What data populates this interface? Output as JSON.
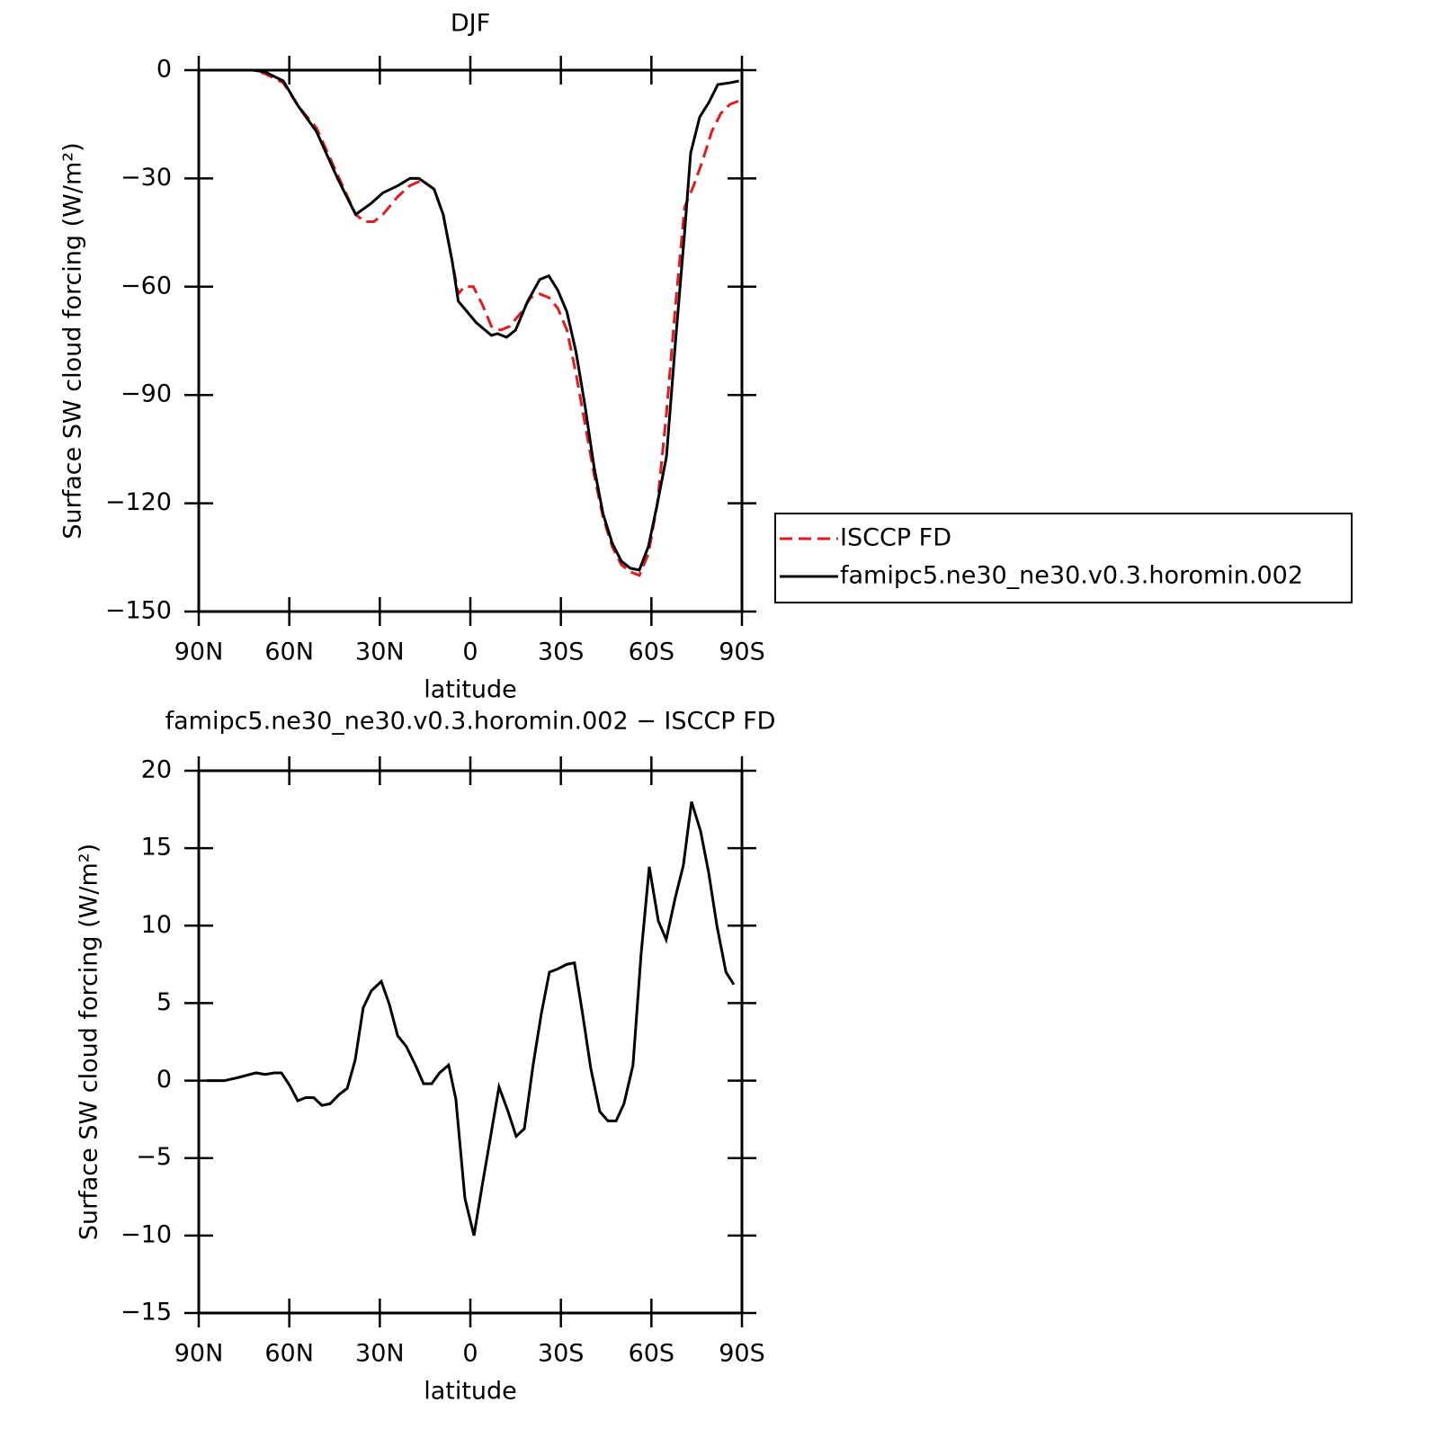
{
  "chart_data": [
    {
      "type": "line",
      "title": "DJF",
      "xlabel": "latitude",
      "ylabel": "Surface SW cloud forcing (W/m²)",
      "xlim": [
        90,
        -90
      ],
      "xticks": [
        {
          "value": 90,
          "label": "90N"
        },
        {
          "value": 60,
          "label": "60N"
        },
        {
          "value": 30,
          "label": "30N"
        },
        0,
        {
          "value": -30,
          "label": "30S"
        },
        {
          "value": -60,
          "label": "60S"
        },
        {
          "value": -90,
          "label": "90S"
        }
      ],
      "ylim": [
        -150,
        0
      ],
      "yticks": [
        0,
        {
          "value": -30,
          "label": "−30"
        },
        {
          "value": -60,
          "label": "−60"
        },
        {
          "value": -90,
          "label": "−90"
        },
        {
          "value": -120,
          "label": "−120"
        },
        {
          "value": -150,
          "label": "−150"
        }
      ],
      "legend": "right",
      "series": [
        {
          "name": "ISCCP FD",
          "color": "#e41a1c",
          "line_style": "dashed",
          "x": [
            88,
            72,
            68,
            62,
            57,
            51,
            44,
            38,
            35,
            32,
            29,
            24,
            20,
            16,
            12,
            9,
            6,
            4,
            2,
            -1,
            -4,
            -7,
            -10,
            -13,
            -17,
            -20,
            -23,
            -26,
            -29,
            -32,
            -35,
            -38,
            -41,
            -44,
            -47,
            -50,
            -53,
            -56,
            -59,
            -62,
            -65,
            -68,
            -71,
            -74,
            -77,
            -80,
            -83,
            -86,
            -89
          ],
          "values": [
            0,
            0,
            -1,
            -3.5,
            -10,
            -16,
            -29,
            -40,
            -42,
            -42,
            -40,
            -35,
            -32,
            -30.5,
            -33,
            -40,
            -53,
            -62,
            -60,
            -60,
            -65,
            -71,
            -72,
            -71,
            -67,
            -63,
            -62,
            -63,
            -66,
            -72,
            -84,
            -98,
            -112,
            -124,
            -132,
            -137,
            -139,
            -140,
            -134,
            -120,
            -95,
            -65,
            -38,
            -32,
            -25,
            -17,
            -12,
            -9.5,
            -8.5
          ]
        },
        {
          "name": "famipc5.ne30_ne30.v0.3.horomin.002",
          "color": "#000000",
          "line_style": "solid",
          "x": [
            88,
            72,
            68,
            62,
            57,
            51,
            44,
            38,
            33,
            29,
            24,
            20,
            17,
            12,
            9,
            6,
            4,
            -2,
            -7,
            -9,
            -12,
            -15,
            -19,
            -23,
            -26,
            -29,
            -32,
            -35,
            -38,
            -41,
            -44,
            -47,
            -50,
            -53,
            -56,
            -59,
            -62,
            -65,
            -68,
            -71,
            -73,
            -76,
            -79,
            -82,
            -86,
            -89
          ],
          "values": [
            0,
            0,
            -0.5,
            -3,
            -10,
            -17,
            -30,
            -40,
            -37,
            -34,
            -32,
            -30,
            -30,
            -33,
            -40,
            -53,
            -64,
            -70,
            -73.5,
            -73,
            -74,
            -72,
            -64,
            -58,
            -57,
            -61,
            -67,
            -78,
            -93,
            -110,
            -123,
            -131,
            -136,
            -138,
            -138.5,
            -132,
            -120,
            -107,
            -75,
            -45,
            -23,
            -13,
            -9,
            -4,
            -3.5,
            -3
          ]
        }
      ]
    },
    {
      "type": "line",
      "title": "famipc5.ne30_ne30.v0.3.horomin.002 − ISCCP FD",
      "xlabel": "latitude",
      "ylabel": "Surface SW cloud forcing (W/m²)",
      "xlim": [
        90,
        -90
      ],
      "xticks": [
        {
          "value": 90,
          "label": "90N"
        },
        {
          "value": 60,
          "label": "60N"
        },
        {
          "value": 30,
          "label": "30N"
        },
        0,
        {
          "value": -30,
          "label": "30S"
        },
        {
          "value": -60,
          "label": "60S"
        },
        {
          "value": -90,
          "label": "90S"
        }
      ],
      "ylim": [
        -15,
        20
      ],
      "yticks": [
        20,
        15,
        10,
        5,
        0,
        {
          "value": -5,
          "label": "−5"
        },
        {
          "value": -10,
          "label": "−10"
        },
        {
          "value": -15,
          "label": "−15"
        }
      ],
      "series": [
        {
          "color": "#000000",
          "line_style": "solid",
          "x": [
            87.3,
            81.4,
            76.9,
            71,
            68,
            65,
            62.6,
            59.9,
            57.2,
            54.5,
            51.9,
            49.2,
            46.5,
            43.5,
            40.8,
            38.2,
            35.5,
            32.8,
            29.5,
            26.8,
            24.1,
            21.2,
            18.2,
            15.5,
            12.8,
            10.2,
            7.2,
            4.8,
            1.8,
            -1.2,
            -3.9,
            -6.9,
            -9.5,
            -12.5,
            -15.2,
            -17.9,
            -20.8,
            -23.5,
            -26.2,
            -28.9,
            -31.9,
            -34.5,
            -37.2,
            -39.9,
            -42.9,
            -45.6,
            -48.3,
            -50.9,
            -53.9,
            -56.6,
            -59.3,
            -62.3,
            -64.9,
            -67.9,
            -70.6,
            -73.3,
            -76.3,
            -79,
            -81.7,
            -84.7,
            -87.3
          ],
          "values": [
            0,
            0,
            0.2,
            0.5,
            0.4,
            0.5,
            0.5,
            -0.3,
            -1.3,
            -1.1,
            -1.1,
            -1.6,
            -1.5,
            -0.9,
            -0.5,
            1.3,
            4.7,
            5.8,
            6.4,
            4.9,
            2.9,
            2.2,
            1.0,
            -0.2,
            -0.2,
            0.5,
            1.0,
            -1.2,
            -7.6,
            -10,
            -6.8,
            -3.4,
            -0.4,
            -2.0,
            -3.6,
            -3.1,
            1.0,
            4.3,
            7.0,
            7.2,
            7.5,
            7.6,
            4.3,
            0.8,
            -2.0,
            -2.6,
            -2.6,
            -1.5,
            1.0,
            8.2,
            13.8,
            10.3,
            9.1,
            11.8,
            13.9,
            18,
            16.1,
            13.4,
            10,
            7,
            6.2
          ]
        }
      ]
    }
  ]
}
